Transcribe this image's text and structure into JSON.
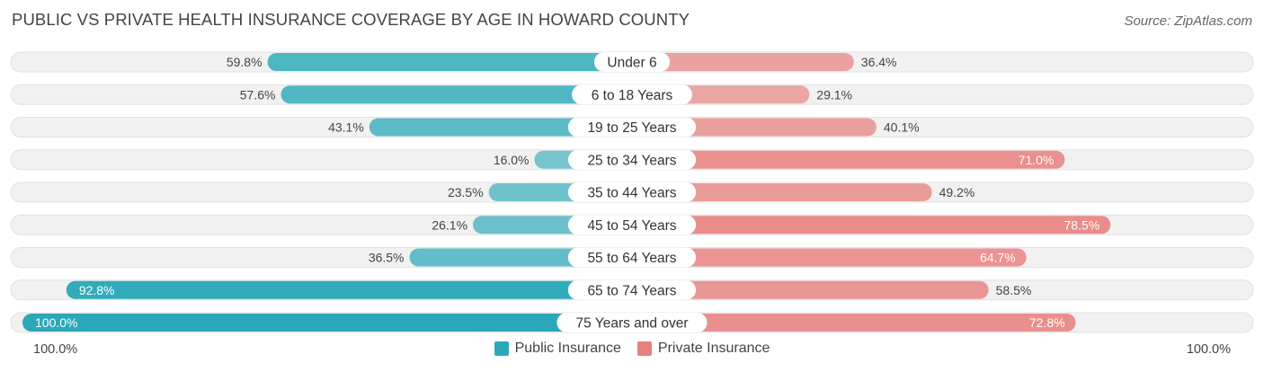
{
  "title": "PUBLIC VS PRIVATE HEALTH INSURANCE COVERAGE BY AGE IN HOWARD COUNTY",
  "source": "Source: ZipAtlas.com",
  "colors": {
    "public": "#2aa8b8",
    "private": "#e8817e",
    "row_bg": "#f1f1f1"
  },
  "chart_data": {
    "type": "bar",
    "categories": [
      "Under 6",
      "6 to 18 Years",
      "19 to 25 Years",
      "25 to 34 Years",
      "35 to 44 Years",
      "45 to 54 Years",
      "55 to 64 Years",
      "65 to 74 Years",
      "75 Years and over"
    ],
    "series": [
      {
        "name": "Public Insurance",
        "values": [
          59.8,
          57.6,
          43.1,
          16.0,
          23.5,
          26.1,
          36.5,
          92.8,
          100.0
        ],
        "labels": [
          "59.8%",
          "57.6%",
          "43.1%",
          "16.0%",
          "23.5%",
          "26.1%",
          "36.5%",
          "92.8%",
          "100.0%"
        ]
      },
      {
        "name": "Private Insurance",
        "values": [
          36.4,
          29.1,
          40.1,
          71.0,
          49.2,
          78.5,
          64.7,
          58.5,
          72.8
        ],
        "labels": [
          "36.4%",
          "29.1%",
          "40.1%",
          "71.0%",
          "49.2%",
          "78.5%",
          "64.7%",
          "58.5%",
          "72.8%"
        ]
      }
    ],
    "xlim": [
      -100,
      100
    ],
    "axis_left_label": "100.0%",
    "axis_right_label": "100.0%",
    "legend_position": "bottom-center"
  },
  "legend": {
    "public": "Public Insurance",
    "private": "Private Insurance"
  }
}
